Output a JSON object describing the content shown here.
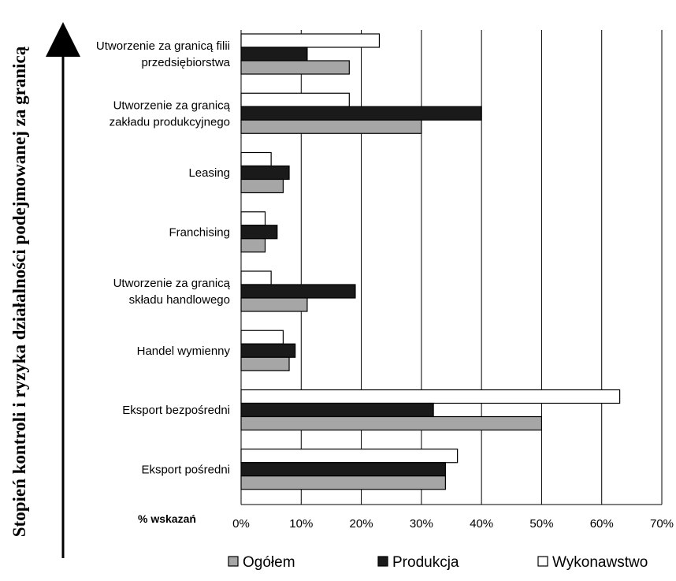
{
  "chart_data": {
    "type": "bar",
    "orientation": "horizontal",
    "side_label": "Stopień kontroli i ryzyka działalności podejmowanej za granicą",
    "xunit_label": "% wskazań",
    "xlim": [
      0,
      70
    ],
    "xticks": [
      "0%",
      "10%",
      "20%",
      "30%",
      "40%",
      "50%",
      "60%",
      "70%"
    ],
    "grid": true,
    "legend_position": "bottom",
    "categories": [
      [
        "Utworzenie za granicą filii",
        "przedsiębiorstwa"
      ],
      [
        "Utworzenie za granicą",
        "zakładu produkcyjnego"
      ],
      [
        "Leasing"
      ],
      [
        "Franchising"
      ],
      [
        "Utworzenie za granicą",
        "składu handlowego"
      ],
      [
        "Handel wymienny"
      ],
      [
        "Eksport bezpośredni"
      ],
      [
        "Eksport pośredni"
      ]
    ],
    "series": [
      {
        "name": "Wykonawstwo",
        "color": "#ffffff",
        "values": [
          23,
          18,
          5,
          4,
          5,
          7,
          63,
          36
        ]
      },
      {
        "name": "Produkcja",
        "color": "#1a1a1a",
        "values": [
          11,
          40,
          8,
          6,
          19,
          9,
          32,
          34
        ]
      },
      {
        "name": "Ogółem",
        "color": "#a6a6a6",
        "values": [
          18,
          30,
          7,
          4,
          11,
          8,
          50,
          34
        ]
      }
    ],
    "legend_order": [
      "Ogółem",
      "Produkcja",
      "Wykonawstwo"
    ]
  }
}
